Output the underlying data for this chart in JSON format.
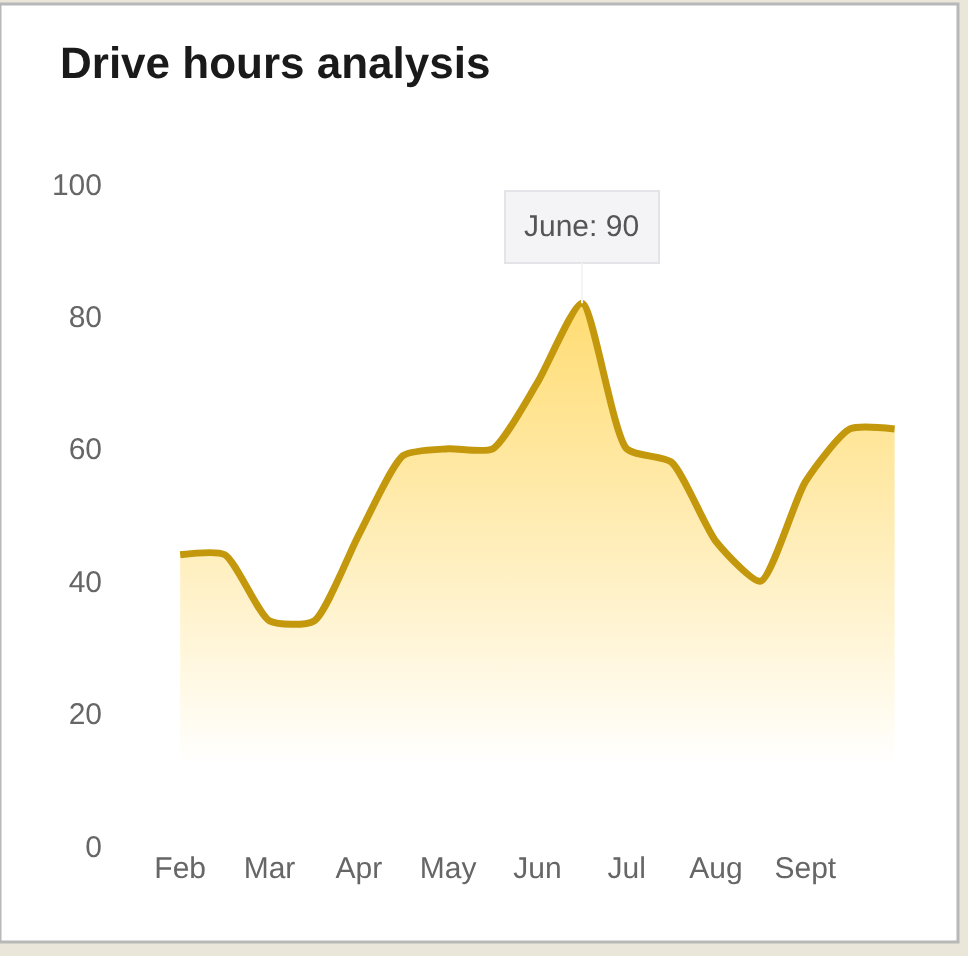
{
  "chart_data": {
    "type": "area",
    "title": "Drive hours analysis",
    "categories": [
      "Feb",
      null,
      "Mar",
      null,
      "Apr",
      null,
      "May",
      null,
      "Jun",
      null,
      "Jul",
      null,
      "Aug",
      null,
      "Sept",
      null,
      null
    ],
    "series": [
      {
        "color": "#c4980c",
        "values": [
          44,
          44,
          34,
          34,
          47,
          59,
          60,
          60,
          70,
          82,
          60,
          58,
          46,
          40,
          55,
          63,
          63
        ]
      }
    ],
    "ylim": [
      0,
      100
    ],
    "yticks": [
      0,
      20,
      40,
      60,
      80,
      100
    ],
    "grid": false,
    "marker": "none",
    "line_style": "solid",
    "annotations": [
      {
        "text": "June: 90",
        "y": 82
      }
    ]
  }
}
